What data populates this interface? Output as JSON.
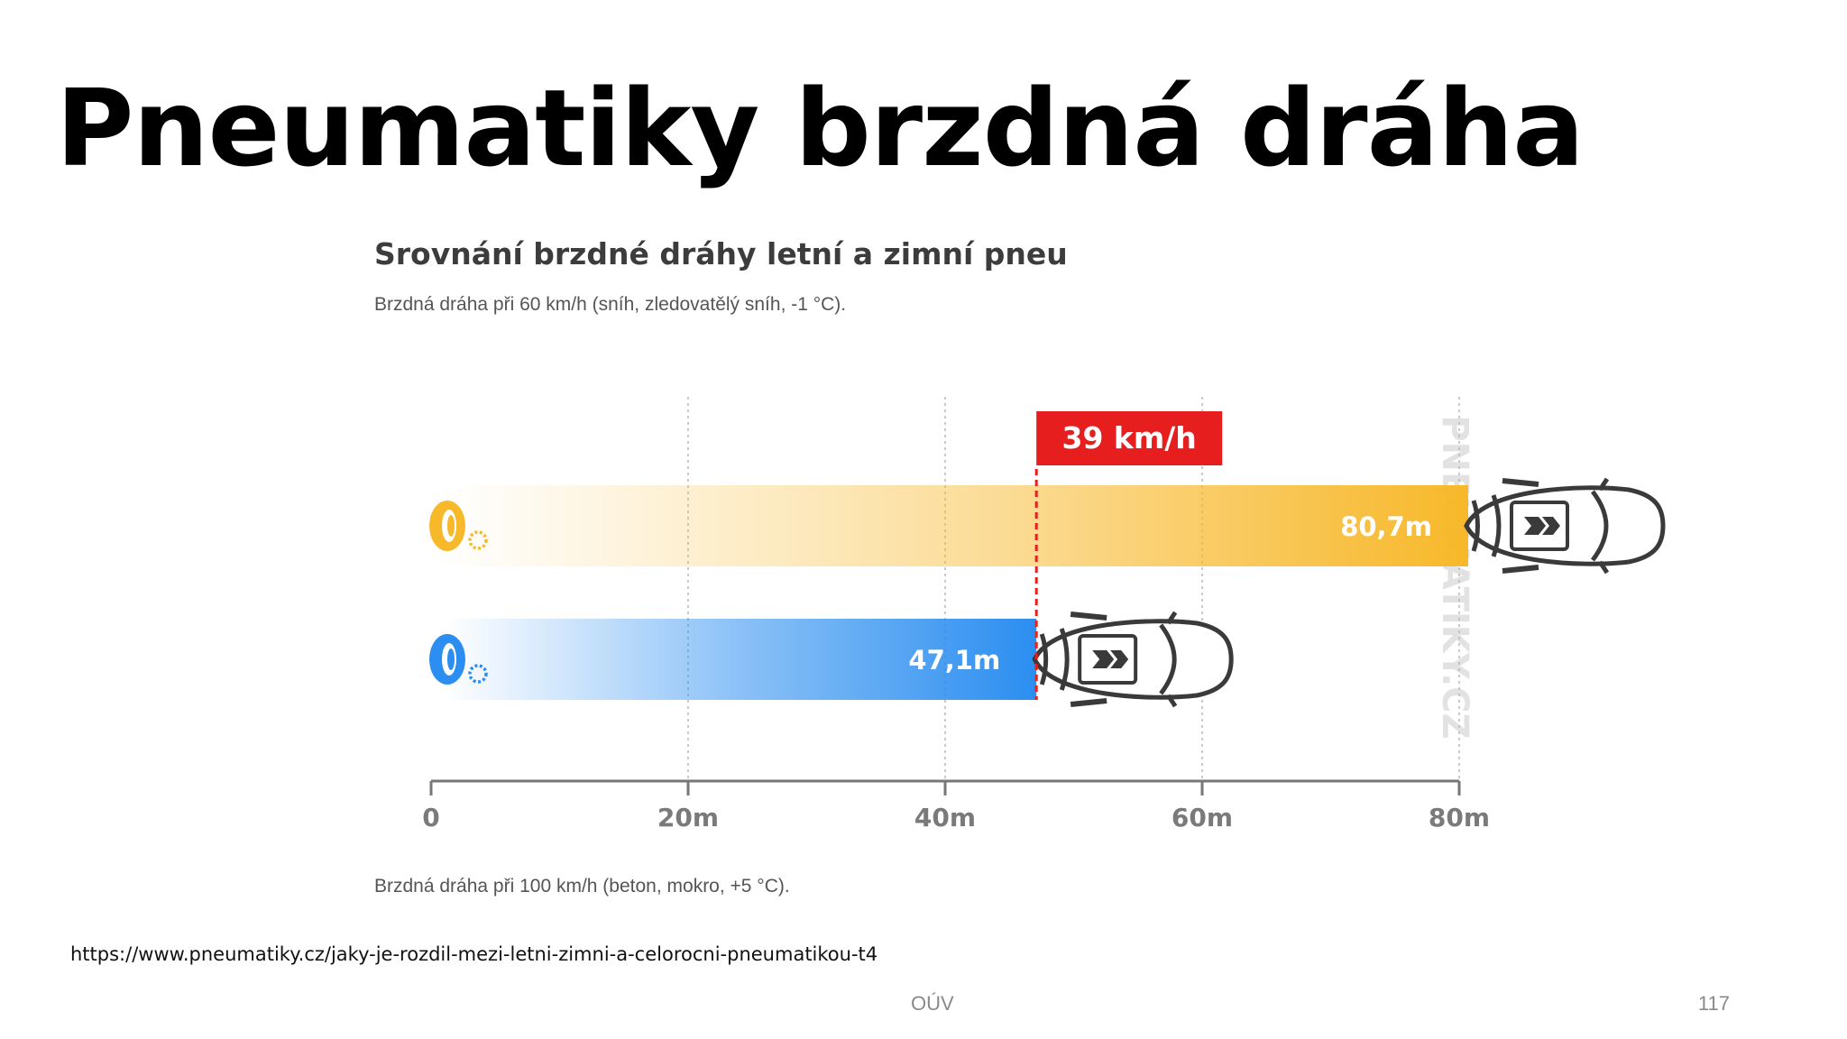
{
  "slide": {
    "title": "Pneumatiky brzdná dráha",
    "source_url": "https://www.pneumatiky.cz/jaky-je-rozdil-mezi-letni-zimni-a-celorocni-pneumatikou-t4",
    "footer_center": "OÚV",
    "page_number": "117"
  },
  "chart_data": {
    "type": "bar",
    "orientation": "horizontal",
    "title": "Srovnání brzdné dráhy letní a zimní pneu",
    "subtitle": "Brzdná dráha při 60 km/h (sníh, zledovatělý sníh, -1 °C).",
    "footnote": "Brzdná dráha při 100 km/h (beton, mokro, +5 °C).",
    "xlim": [
      0,
      80
    ],
    "ticks": [
      {
        "value": 0,
        "label": "0"
      },
      {
        "value": 20,
        "label": "20m"
      },
      {
        "value": 40,
        "label": "40m"
      },
      {
        "value": 60,
        "label": "60m"
      },
      {
        "value": 80,
        "label": "80m"
      }
    ],
    "grid": true,
    "series": [
      {
        "icon": "summer-tire-icon",
        "value": 80.7,
        "label": "80,7m",
        "color": "#f7b82a"
      },
      {
        "icon": "winter-tire-icon",
        "value": 47.1,
        "label": "47,1m",
        "color": "#2b8ef0"
      }
    ],
    "annotation": {
      "label": "39 km/h",
      "value": 47.1,
      "color": "#e61e1e"
    },
    "watermark": "PNEUMATIKY.CZ"
  }
}
